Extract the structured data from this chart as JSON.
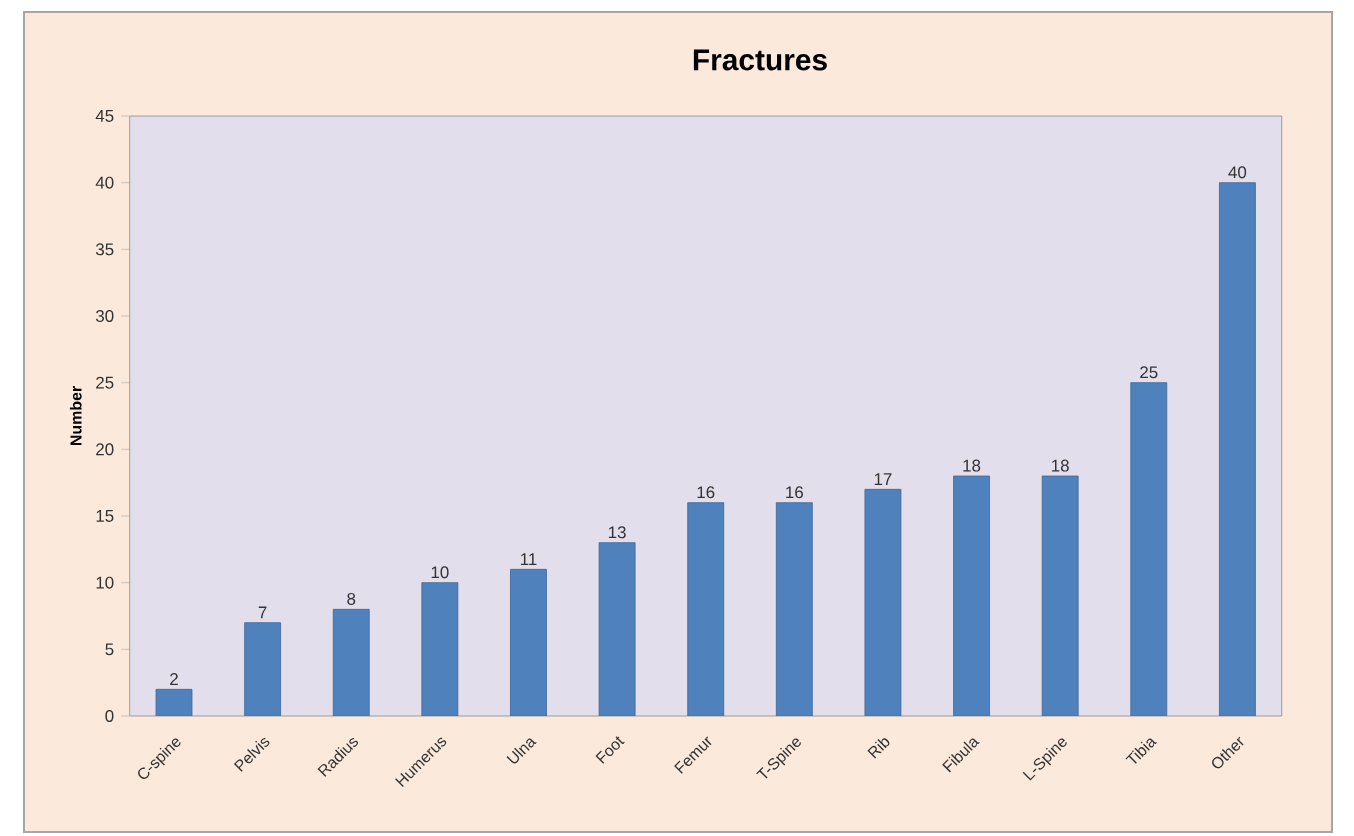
{
  "chart_data": {
    "type": "bar",
    "title": "Fractures",
    "ylabel": "Number",
    "categories": [
      "C-spine",
      "Pelvis",
      "Radius",
      "Humerus",
      "Ulna",
      "Foot",
      "Femur",
      "T-Spine",
      "Rib",
      "Fibula",
      "L-Spine",
      "Tibia",
      "Other"
    ],
    "values": [
      2,
      7,
      8,
      10,
      11,
      13,
      16,
      16,
      17,
      18,
      18,
      25,
      40
    ],
    "color": "#4f81bd",
    "ylim": [
      0,
      45
    ],
    "yticks": [
      0,
      5,
      10,
      15,
      20,
      25,
      30,
      35,
      40,
      45
    ],
    "grid": false,
    "data_labels": true
  }
}
